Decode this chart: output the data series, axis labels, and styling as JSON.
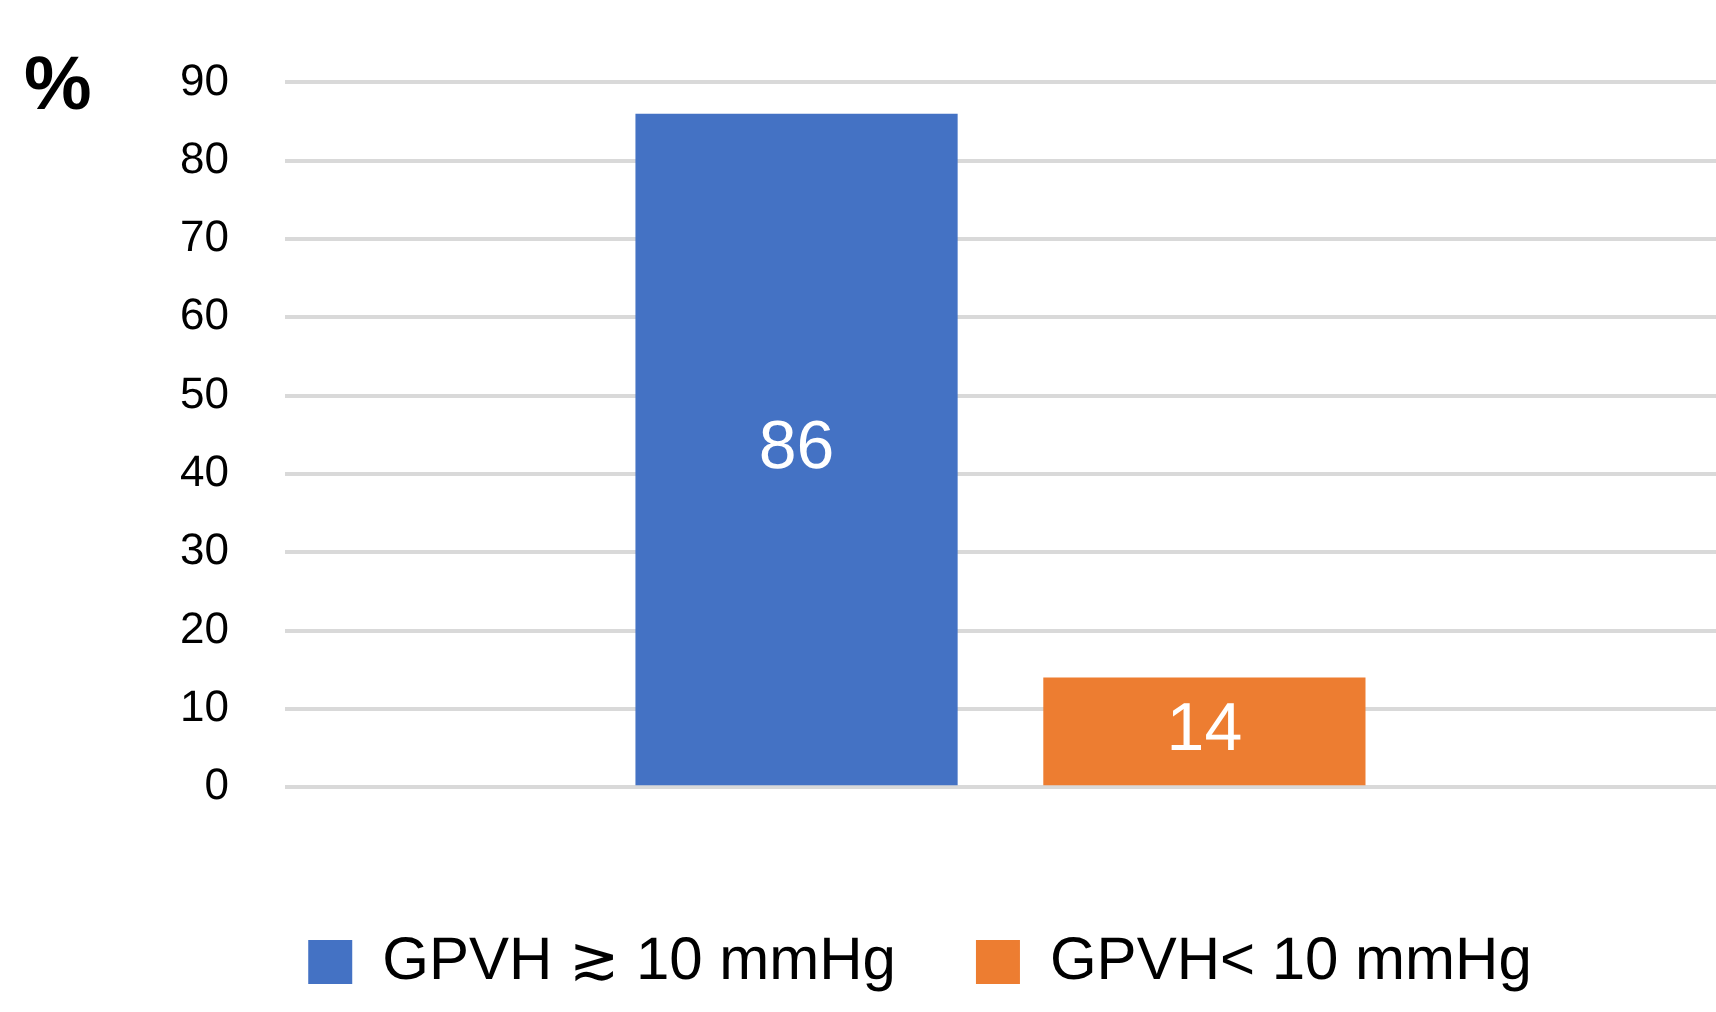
{
  "chart_data": {
    "type": "bar",
    "ylabel": "%",
    "categories": [
      null
    ],
    "series": [
      {
        "name": "GPVH ≳ 10 mmHg",
        "color": "#4472c4",
        "values": [
          86
        ]
      },
      {
        "name": "GPVH< 10 mmHg",
        "color": "#ed7d31",
        "values": [
          14
        ]
      }
    ],
    "ylim": [
      0,
      90
    ],
    "yticks": [
      0,
      10,
      20,
      30,
      40,
      50,
      60,
      70,
      80,
      90
    ],
    "grid": "y",
    "legend": "bottom",
    "data_labels": true
  }
}
